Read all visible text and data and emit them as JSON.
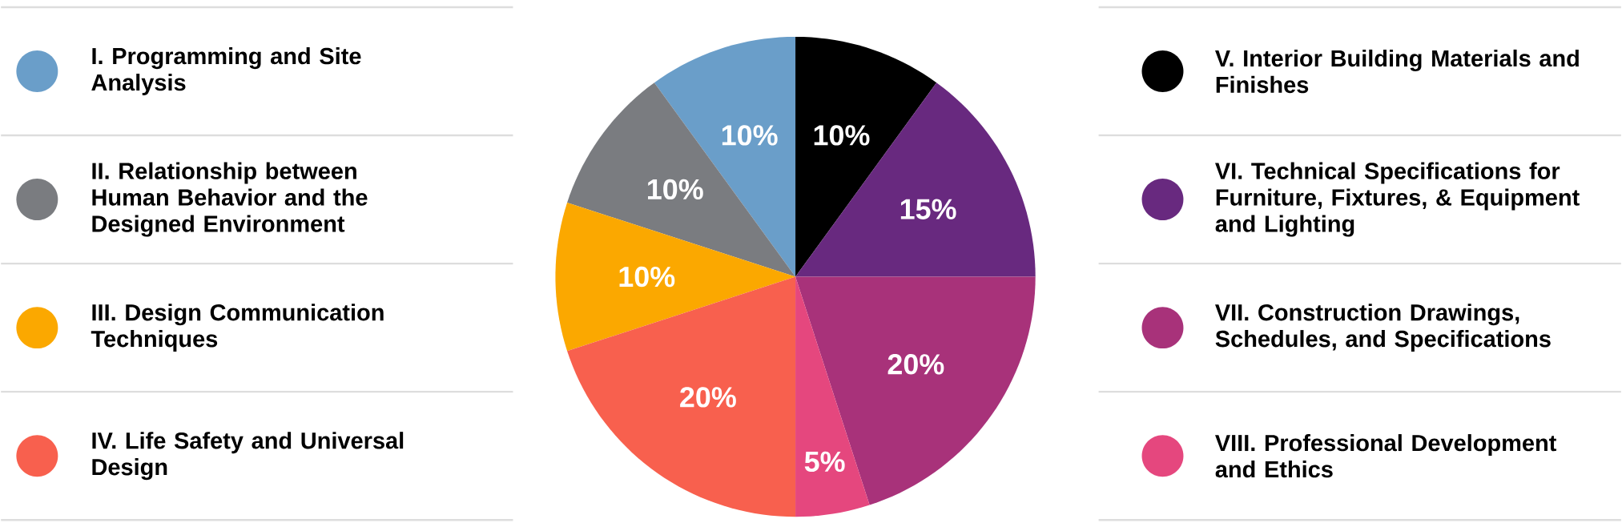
{
  "chart_data": {
    "type": "pie",
    "legend": "left",
    "categories": [
      "I. Programming and Site Analysis",
      "II. Relationship between Human Behavior and the Designed Environment",
      "III. Design Communication Techniques",
      "IV. Life Safety and Universal Design",
      "V. Interior Building Materials and Finishes",
      "VI. Technical Specifications for Furniture, Fixtures, & Equipment and Lighting",
      "VII. Construction Drawings, Schedules, and Specifications",
      "VIII. Professional Development and Ethics"
    ],
    "values": [
      10,
      10,
      10,
      20,
      10,
      15,
      20,
      5
    ],
    "value_labels": [
      "10%",
      "10%",
      "10%",
      "20%",
      "10%",
      "15%",
      "20%",
      "5%"
    ],
    "colors": [
      "#6a9ec9",
      "#7a7c80",
      "#fba800",
      "#f8604e",
      "#000000",
      "#68297f",
      "#a8327a",
      "#e5477e"
    ]
  }
}
